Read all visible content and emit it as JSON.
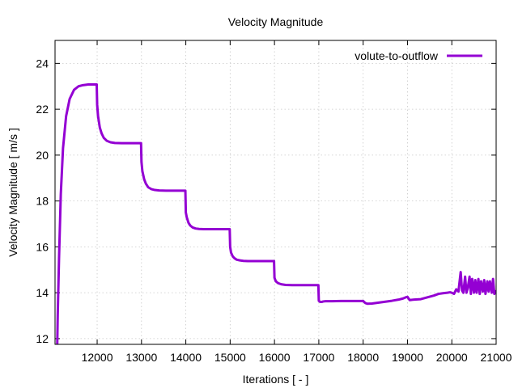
{
  "chart_data": {
    "type": "line",
    "title": "Velocity Magnitude",
    "xlabel": "Iterations [ - ]",
    "ylabel": "Velocity Magnitude [ m/s ]",
    "xlim": [
      11050,
      21000
    ],
    "ylim": [
      11.75,
      25
    ],
    "xticks": [
      12000,
      13000,
      14000,
      15000,
      16000,
      17000,
      18000,
      19000,
      20000,
      21000
    ],
    "xtick_labels": [
      "12000",
      "13000",
      "14000",
      "15000",
      "16000",
      "17000",
      "18000",
      "19000",
      "20000",
      "21000"
    ],
    "yticks": [
      12,
      14,
      16,
      18,
      20,
      22,
      24
    ],
    "ytick_labels": [
      "12",
      "14",
      "16",
      "18",
      "20",
      "22",
      "24"
    ],
    "grid": true,
    "legend_position": "top-right",
    "series": [
      {
        "name": "volute-to-outflow",
        "color": "#9400d3",
        "x": [
          11100,
          11110,
          11140,
          11180,
          11230,
          11300,
          11380,
          11480,
          11580,
          11680,
          11800,
          11900,
          11990,
          12000,
          12020,
          12060,
          12100,
          12150,
          12220,
          12300,
          12400,
          12550,
          12750,
          12990,
          13000,
          13020,
          13060,
          13100,
          13150,
          13220,
          13300,
          13400,
          13550,
          13750,
          13990,
          14000,
          14020,
          14060,
          14100,
          14150,
          14220,
          14300,
          14400,
          14550,
          14750,
          14990,
          15000,
          15020,
          15060,
          15100,
          15150,
          15220,
          15300,
          15400,
          15550,
          15750,
          15990,
          16000,
          16030,
          16080,
          16150,
          16250,
          16400,
          16550,
          16700,
          16850,
          16990,
          17000,
          17030,
          17070,
          17100,
          17150,
          17300,
          17500,
          17700,
          17900,
          18000,
          18050,
          18100,
          18200,
          18350,
          18500,
          18650,
          18800,
          18900,
          18960,
          19000,
          19050,
          19150,
          19300,
          19450,
          19600,
          19700,
          19800,
          19900,
          19960,
          20000,
          20050,
          20100,
          20150,
          20200,
          20230,
          20260,
          20300,
          20330,
          20360,
          20400,
          20430,
          20460,
          20500,
          20530,
          20560,
          20600,
          20630,
          20660,
          20700,
          20730,
          20760,
          20800,
          20830,
          20860,
          20900,
          20930,
          20960,
          21000
        ],
        "y": [
          11.75,
          13.0,
          15.5,
          18.3,
          20.3,
          21.7,
          22.45,
          22.85,
          23.0,
          23.05,
          23.08,
          23.08,
          23.08,
          22.2,
          21.7,
          21.2,
          20.95,
          20.75,
          20.62,
          20.56,
          20.53,
          20.52,
          20.52,
          20.52,
          19.7,
          19.3,
          18.95,
          18.75,
          18.6,
          18.52,
          18.48,
          18.46,
          18.45,
          18.45,
          18.45,
          17.5,
          17.3,
          17.05,
          16.93,
          16.85,
          16.8,
          16.78,
          16.77,
          16.77,
          16.77,
          16.77,
          16.0,
          15.75,
          15.58,
          15.5,
          15.44,
          15.41,
          15.39,
          15.38,
          15.38,
          15.38,
          15.38,
          14.65,
          14.5,
          14.42,
          14.37,
          14.34,
          14.33,
          14.33,
          14.33,
          14.33,
          14.33,
          13.65,
          13.6,
          13.6,
          13.62,
          13.63,
          13.63,
          13.64,
          13.64,
          13.64,
          13.64,
          13.55,
          13.52,
          13.53,
          13.57,
          13.61,
          13.65,
          13.7,
          13.75,
          13.8,
          13.82,
          13.68,
          13.7,
          13.72,
          13.8,
          13.88,
          13.95,
          13.98,
          14.0,
          14.02,
          14.0,
          13.95,
          14.15,
          14.05,
          14.9,
          14.1,
          14.0,
          14.7,
          14.0,
          14.2,
          14.7,
          13.95,
          14.6,
          14.0,
          14.55,
          14.0,
          14.6,
          13.95,
          14.5,
          14.05,
          14.55,
          13.95,
          14.5,
          14.05,
          14.5,
          14.0,
          14.6,
          13.95,
          14.1
        ]
      }
    ]
  }
}
